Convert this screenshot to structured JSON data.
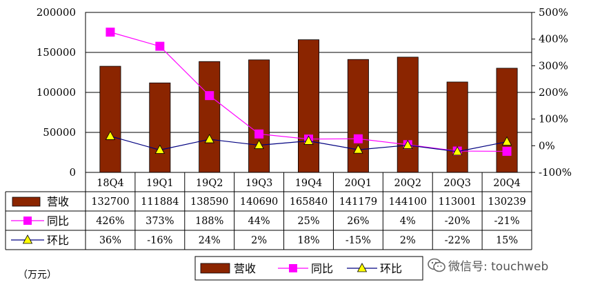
{
  "chart_data": {
    "type": "bar",
    "categories": [
      "18Q4",
      "19Q1",
      "19Q2",
      "19Q3",
      "19Q4",
      "20Q1",
      "20Q2",
      "20Q3",
      "20Q4"
    ],
    "series": [
      {
        "name": "营收",
        "kind": "bar",
        "axis": "left",
        "color": "#8B2500",
        "values": [
          132700,
          111884,
          138590,
          140690,
          165840,
          141179,
          144100,
          113001,
          130239
        ],
        "labels": [
          "132700",
          "111884",
          "138590",
          "140690",
          "165840",
          "141179",
          "144100",
          "113001",
          "130239"
        ]
      },
      {
        "name": "同比",
        "kind": "line",
        "axis": "right",
        "color": "#FF00FF",
        "marker": "square",
        "values": [
          426,
          373,
          188,
          44,
          25,
          26,
          4,
          -20,
          -21
        ],
        "labels": [
          "426%",
          "373%",
          "188%",
          "44%",
          "25%",
          "26%",
          "4%",
          "-20%",
          "-21%"
        ]
      },
      {
        "name": "环比",
        "kind": "line",
        "axis": "right",
        "color": "#000080",
        "marker": "triangle",
        "marker_color": "#FFFF00",
        "values": [
          36,
          -16,
          24,
          2,
          18,
          -15,
          2,
          -22,
          15
        ],
        "labels": [
          "36%",
          "-16%",
          "24%",
          "2%",
          "18%",
          "-15%",
          "2%",
          "-22%",
          "15%"
        ]
      }
    ],
    "y_left": {
      "ylim": [
        0,
        200000
      ],
      "ticks": [
        0,
        50000,
        100000,
        150000,
        200000
      ],
      "tick_labels": [
        "0",
        "50000",
        "100000",
        "150000",
        "200000"
      ]
    },
    "y_right": {
      "ylim": [
        -100,
        500
      ],
      "ticks": [
        -100,
        0,
        100,
        200,
        300,
        400,
        500
      ],
      "tick_labels": [
        "-100%",
        "0%",
        "100%",
        "200%",
        "300%",
        "400%",
        "500%"
      ]
    },
    "grid": true,
    "data_table": true,
    "legend": "bottom"
  },
  "unit_label": "（万元）",
  "watermark": "微信号: touchweb"
}
